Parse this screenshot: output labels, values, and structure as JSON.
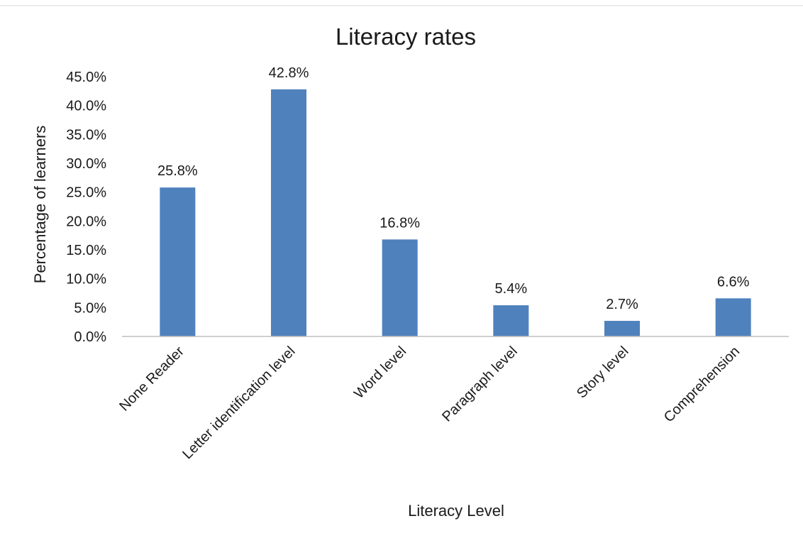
{
  "chart_data": {
    "type": "bar",
    "title": "Literacy rates",
    "xlabel": "Literacy Level",
    "ylabel": "Percentage of learners",
    "categories": [
      "None Reader",
      "Letter identification level",
      "Word level",
      "Paragraph level",
      "Story level",
      "Comprehension"
    ],
    "values": [
      25.8,
      42.8,
      16.8,
      5.4,
      2.7,
      6.6
    ],
    "data_labels": [
      "25.8%",
      "42.8%",
      "16.8%",
      "5.4%",
      "2.7%",
      "6.6%"
    ],
    "ylim": [
      0,
      45
    ],
    "yticks": [
      "0.0%",
      "5.0%",
      "10.0%",
      "15.0%",
      "20.0%",
      "25.0%",
      "30.0%",
      "35.0%",
      "40.0%",
      "45.0%"
    ],
    "grid": false,
    "legend": "none",
    "bar_color": "#4f81bd"
  }
}
